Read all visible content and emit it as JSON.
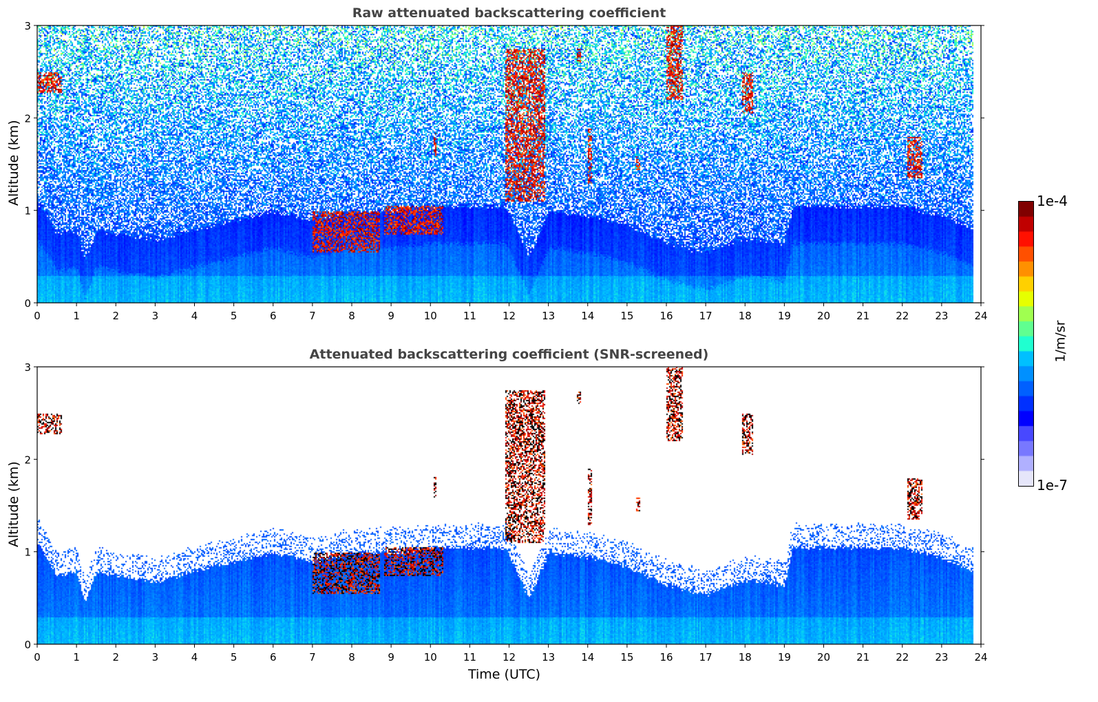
{
  "chart_data": [
    {
      "type": "heatmap",
      "title": "Raw attenuated backscattering coefficient",
      "xlabel": "",
      "ylabel": "Altitude (km)",
      "xlim": [
        0,
        24
      ],
      "ylim": [
        0,
        3
      ],
      "xticks": [
        "0",
        "1",
        "2",
        "3",
        "4",
        "5",
        "6",
        "7",
        "8",
        "9",
        "10",
        "11",
        "12",
        "13",
        "14",
        "15",
        "16",
        "17",
        "18",
        "19",
        "20",
        "21",
        "22",
        "23",
        "24"
      ],
      "yticks": [
        "0",
        "1",
        "2",
        "3"
      ],
      "data_end_time": 23.8,
      "screened": false
    },
    {
      "type": "heatmap",
      "title": "Attenuated backscattering coefficient (SNR-screened)",
      "xlabel": "Time (UTC)",
      "ylabel": "Altitude (km)",
      "xlim": [
        0,
        24
      ],
      "ylim": [
        0,
        3
      ],
      "xticks": [
        "0",
        "1",
        "2",
        "3",
        "4",
        "5",
        "6",
        "7",
        "8",
        "9",
        "10",
        "11",
        "12",
        "13",
        "14",
        "15",
        "16",
        "17",
        "18",
        "19",
        "20",
        "21",
        "22",
        "23",
        "24"
      ],
      "yticks": [
        "0",
        "1",
        "2",
        "3"
      ],
      "data_end_time": 23.8,
      "screened": true
    }
  ],
  "boundary_layer_top_km": {
    "time_utc": [
      0,
      0.5,
      1,
      1.2,
      1.5,
      2,
      3,
      4,
      5,
      6,
      7,
      8,
      9,
      10,
      11,
      11.9,
      12.5,
      13,
      14,
      15,
      16,
      17,
      18,
      19,
      19.2,
      20,
      21,
      22,
      23,
      23.8
    ],
    "altitude_km": [
      1.1,
      0.75,
      0.8,
      0.45,
      0.8,
      0.75,
      0.68,
      0.8,
      0.9,
      1.0,
      0.9,
      1.0,
      1.0,
      1.05,
      1.05,
      1.05,
      0.5,
      1.0,
      0.95,
      0.85,
      0.65,
      0.55,
      0.7,
      0.65,
      1.05,
      1.05,
      1.05,
      1.05,
      0.95,
      0.8
    ]
  },
  "cloud_features": [
    {
      "t0": 0.0,
      "t1": 0.6,
      "z0": 2.28,
      "z1": 2.5
    },
    {
      "t0": 7.0,
      "t1": 8.7,
      "z0": 0.55,
      "z1": 1.0
    },
    {
      "t0": 8.8,
      "t1": 10.3,
      "z0": 0.75,
      "z1": 1.05
    },
    {
      "t0": 10.05,
      "t1": 10.12,
      "z0": 1.6,
      "z1": 1.85
    },
    {
      "t0": 11.9,
      "t1": 12.9,
      "z0": 1.1,
      "z1": 2.75
    },
    {
      "t0": 13.7,
      "t1": 13.8,
      "z0": 2.6,
      "z1": 2.75
    },
    {
      "t0": 14.0,
      "t1": 14.1,
      "z0": 1.3,
      "z1": 1.9
    },
    {
      "t0": 15.2,
      "t1": 15.3,
      "z0": 1.45,
      "z1": 1.6
    },
    {
      "t0": 16.0,
      "t1": 16.4,
      "z0": 2.2,
      "z1": 3.0
    },
    {
      "t0": 17.9,
      "t1": 18.2,
      "z0": 2.05,
      "z1": 2.5
    },
    {
      "t0": 22.1,
      "t1": 22.5,
      "z0": 1.35,
      "z1": 1.8
    }
  ],
  "colorbar": {
    "max_label": "1e-4",
    "min_label": "1e-7",
    "unit": "1/m/sr",
    "colors": [
      "#e6e6fa",
      "#b0b0ff",
      "#7878ff",
      "#4848ff",
      "#0000ff",
      "#0030ff",
      "#0060ff",
      "#0090ff",
      "#00c0ff",
      "#20ffd0",
      "#60ff90",
      "#a0ff50",
      "#e6ff00",
      "#ffd000",
      "#ff9000",
      "#ff5000",
      "#ff1000",
      "#c00000",
      "#800000"
    ]
  }
}
